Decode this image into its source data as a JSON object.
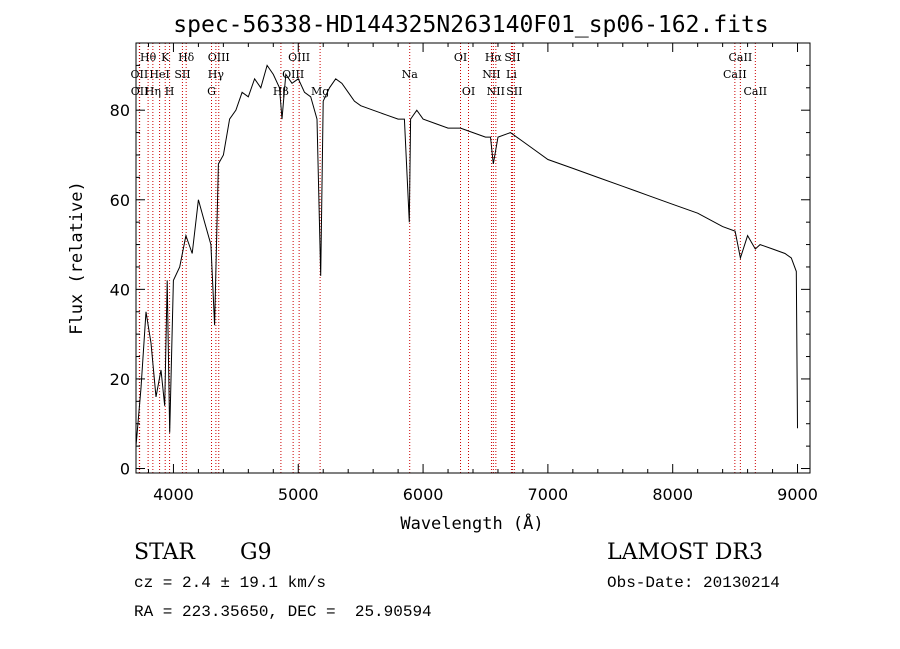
{
  "chart_data": {
    "type": "line",
    "title": "spec-56338-HD144325N263140F01_sp06-162.fits",
    "xlabel": "Wavelength (Å)",
    "ylabel": "Flux (relative)",
    "xlim": [
      3700,
      9100
    ],
    "ylim": [
      -1,
      95
    ],
    "xticks": [
      4000,
      5000,
      6000,
      7000,
      8000,
      9000
    ],
    "yticks": [
      0,
      20,
      40,
      60,
      80
    ],
    "series": [
      {
        "name": "flux",
        "x": [
          3700,
          3740,
          3780,
          3820,
          3860,
          3900,
          3930,
          3950,
          3970,
          4000,
          4050,
          4100,
          4150,
          4200,
          4250,
          4300,
          4330,
          4360,
          4400,
          4450,
          4500,
          4550,
          4600,
          4650,
          4700,
          4750,
          4800,
          4850,
          4870,
          4900,
          4950,
          5000,
          5050,
          5100,
          5150,
          5180,
          5200,
          5250,
          5300,
          5350,
          5400,
          5450,
          5500,
          5600,
          5700,
          5800,
          5850,
          5890,
          5900,
          5950,
          6000,
          6100,
          6200,
          6300,
          6400,
          6500,
          6540,
          6563,
          6600,
          6700,
          6800,
          6900,
          7000,
          7200,
          7400,
          7600,
          7800,
          8000,
          8200,
          8400,
          8500,
          8542,
          8600,
          8662,
          8700,
          8800,
          8900,
          8950,
          8990,
          9000
        ],
        "y": [
          5,
          18,
          35,
          28,
          16,
          22,
          14,
          42,
          8,
          42,
          45,
          52,
          48,
          60,
          55,
          50,
          32,
          68,
          70,
          78,
          80,
          84,
          83,
          87,
          85,
          90,
          88,
          85,
          78,
          88,
          86,
          87,
          84,
          83,
          78,
          43,
          82,
          85,
          87,
          86,
          84,
          82,
          81,
          80,
          79,
          78,
          78,
          55,
          78,
          80,
          78,
          77,
          76,
          76,
          75,
          74,
          74,
          68,
          74,
          75,
          73,
          71,
          69,
          67,
          65,
          63,
          61,
          59,
          57,
          54,
          53,
          47,
          52,
          49,
          50,
          49,
          48,
          47,
          44,
          9
        ]
      }
    ],
    "line_markers": [
      {
        "label": "Hθ",
        "x": 3797,
        "row": 1
      },
      {
        "label": "OII",
        "x": 3727,
        "row": 2
      },
      {
        "label": "OII",
        "x": 3729,
        "row": 3
      },
      {
        "label": "K",
        "x": 3934,
        "row": 1
      },
      {
        "label": "HeI",
        "x": 3889,
        "row": 2
      },
      {
        "label": "Hη",
        "x": 3835,
        "row": 3
      },
      {
        "label": "Hδ",
        "x": 4102,
        "row": 1
      },
      {
        "label": "SII",
        "x": 4072,
        "row": 2
      },
      {
        "label": "H",
        "x": 3969,
        "row": 3
      },
      {
        "label": "OIII",
        "x": 4363,
        "row": 1
      },
      {
        "label": "Hγ",
        "x": 4340,
        "row": 2
      },
      {
        "label": "G",
        "x": 4305,
        "row": 3
      },
      {
        "label": "OIII",
        "x": 5007,
        "row": 1
      },
      {
        "label": "OIII",
        "x": 4959,
        "row": 2
      },
      {
        "label": "Hβ",
        "x": 4861,
        "row": 3
      },
      {
        "label": "Mg",
        "x": 5175,
        "row": 3
      },
      {
        "label": "Na",
        "x": 5893,
        "row": 2
      },
      {
        "label": "OI",
        "x": 6300,
        "row": 1
      },
      {
        "label": "OI",
        "x": 6364,
        "row": 3
      },
      {
        "label": "Hα",
        "x": 6563,
        "row": 1
      },
      {
        "label": "SII",
        "x": 6716,
        "row": 1
      },
      {
        "label": "NII",
        "x": 6548,
        "row": 2
      },
      {
        "label": "Li",
        "x": 6708,
        "row": 2
      },
      {
        "label": "NII",
        "x": 6583,
        "row": 3
      },
      {
        "label": "SII",
        "x": 6731,
        "row": 3
      },
      {
        "label": "CaII",
        "x": 8542,
        "row": 1
      },
      {
        "label": "CaII",
        "x": 8498,
        "row": 2
      },
      {
        "label": "CaII",
        "x": 8662,
        "row": 3
      }
    ],
    "colors": {
      "line": "#000000",
      "marker": "#cc0000",
      "axis": "#000000"
    }
  },
  "info": {
    "object_type": "STAR",
    "subclass": "G9",
    "survey": "LAMOST DR3",
    "cz": "cz = 2.4 ± 19.1 km/s",
    "obs_date": "Obs-Date: 20130214",
    "coords": "RA = 223.35650, DEC =  25.90594"
  }
}
